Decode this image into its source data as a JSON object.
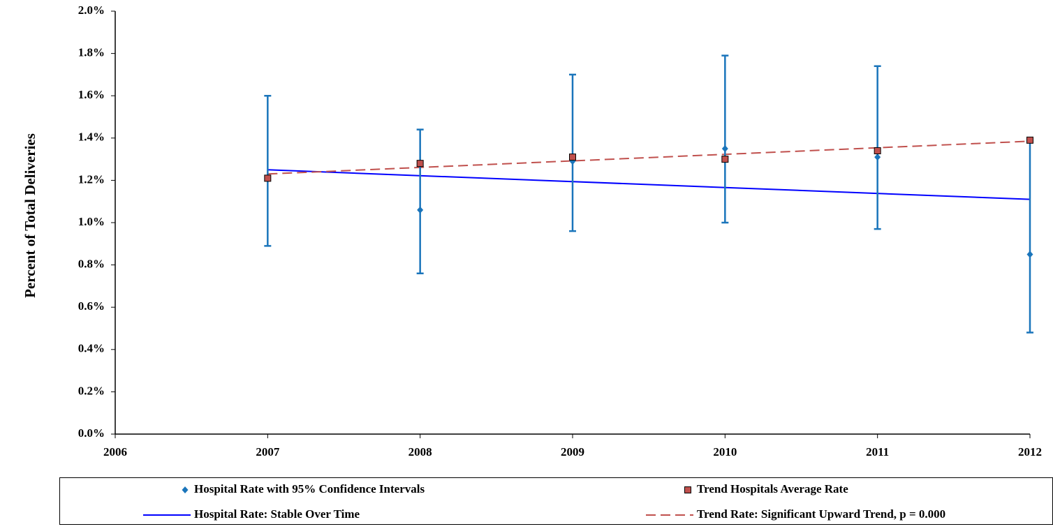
{
  "chart_data": {
    "type": "scatter",
    "y_label": "Percent of Total Deliveries",
    "xlim": [
      2006,
      2012
    ],
    "xticks": [
      2006,
      2007,
      2008,
      2009,
      2010,
      2011,
      2012
    ],
    "ylim": [
      0,
      2
    ],
    "yticks": [
      {
        "value": 0,
        "label": "0.0%"
      },
      {
        "value": 0.2,
        "label": "0.2%"
      },
      {
        "value": 0.4,
        "label": "0.4%"
      },
      {
        "value": 0.6,
        "label": "0.6%"
      },
      {
        "value": 0.8,
        "label": "0.8%"
      },
      {
        "value": 1.0,
        "label": "1.0%"
      },
      {
        "value": 1.2,
        "label": "1.2%"
      },
      {
        "value": 1.4,
        "label": "1.4%"
      },
      {
        "value": 1.6,
        "label": "1.6%"
      },
      {
        "value": 1.8,
        "label": "1.8%"
      },
      {
        "value": 2.0,
        "label": "2.0%"
      }
    ],
    "series": [
      {
        "name": "Hospital Rate with 95% Confidence Intervals",
        "color": "#1a75bb",
        "marker": "diamond",
        "x": [
          2007,
          2008,
          2009,
          2010,
          2011,
          2012
        ],
        "values": [
          1.21,
          1.06,
          1.29,
          1.35,
          1.31,
          0.85
        ],
        "ci_low": [
          0.89,
          0.76,
          0.96,
          1.0,
          0.97,
          0.48
        ],
        "ci_high": [
          1.6,
          1.44,
          1.7,
          1.79,
          1.74,
          1.39
        ]
      },
      {
        "name": "Trend Hospitals Average Rate",
        "color": "#c0504d",
        "marker": "square",
        "x": [
          2007,
          2008,
          2009,
          2010,
          2011,
          2012
        ],
        "values": [
          1.21,
          1.28,
          1.31,
          1.3,
          1.34,
          1.39
        ]
      },
      {
        "name": "Hospital Rate: Stable Over Time",
        "color": "#0000ff",
        "line": "solid",
        "x": [
          2007,
          2012
        ],
        "values": [
          1.25,
          1.11
        ]
      },
      {
        "name": "Trend Rate: Significant Upward Trend, p = 0.000",
        "color": "#c0504d",
        "line": "dashed",
        "x": [
          2007,
          2012
        ],
        "values": [
          1.23,
          1.385
        ]
      }
    ]
  }
}
